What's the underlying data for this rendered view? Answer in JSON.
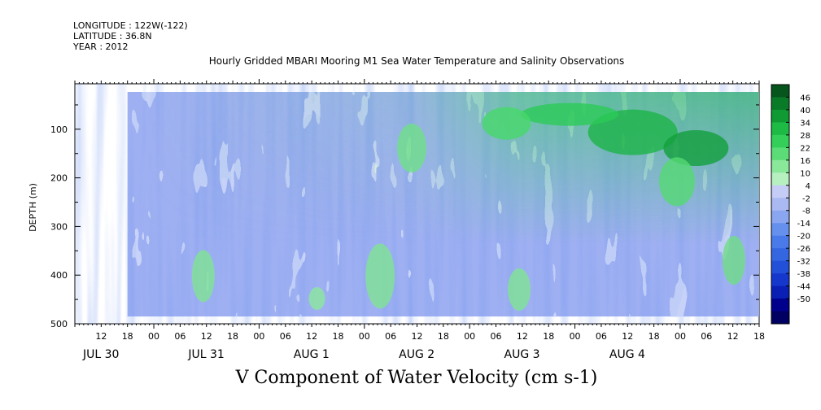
{
  "header": {
    "longitude": "LONGITUDE : 122W(-122)",
    "latitude": "LATITUDE : 36.8N",
    "year": "YEAR : 2012"
  },
  "chart_data": {
    "type": "heatmap",
    "title": "Hourly Gridded MBARI Mooring M1 Sea Water Temperature and Salinity Observations",
    "xlabel": "V Component of Water Velocity (cm s-1)",
    "ylabel": "DEPTH (m)",
    "ylim": [
      500,
      20
    ],
    "ytick_values": [
      100,
      200,
      300,
      400,
      500
    ],
    "ytick_labels": [
      "100",
      "200",
      "300",
      "400",
      "500"
    ],
    "x_tick_hours": [
      "12",
      "18",
      "00",
      "06",
      "12",
      "18",
      "00",
      "06",
      "12",
      "18",
      "00",
      "06",
      "12",
      "18",
      "00",
      "06",
      "12",
      "18",
      "00",
      "06",
      "12",
      "18",
      "00",
      "06",
      "12",
      "18"
    ],
    "x_date_labels": [
      "JUL 30",
      "JUL 31",
      "AUG  1",
      "AUG  2",
      "AUG  3",
      "AUG  4"
    ],
    "x_range_hours_from_jul30_00": [
      6,
      162
    ],
    "data_start_hour": 18,
    "data_end_hour": 162,
    "colorbar": {
      "levels": [
        -50,
        -44,
        -38,
        -32,
        -26,
        -20,
        -14,
        -8,
        -2,
        4,
        10,
        16,
        22,
        28,
        34,
        40,
        46
      ],
      "labels": [
        "46",
        "40",
        "34",
        "28",
        "22",
        "16",
        "10",
        "4",
        "-2",
        "-8",
        "-14",
        "-20",
        "-26",
        "-32",
        "-38",
        "-44",
        "-50"
      ],
      "colors": [
        "#000062",
        "#00008d",
        "#0a1fb4",
        "#1537cc",
        "#2350d9",
        "#3566e2",
        "#4a7ae9",
        "#6690ee",
        "#8aa6f1",
        "#abb9f3",
        "#c5ccf5",
        "#b6f0c0",
        "#8ae89b",
        "#5cdc77",
        "#33cf59",
        "#1dbb45",
        "#0f9a34",
        "#087a28",
        "#05551c"
      ]
    }
  }
}
